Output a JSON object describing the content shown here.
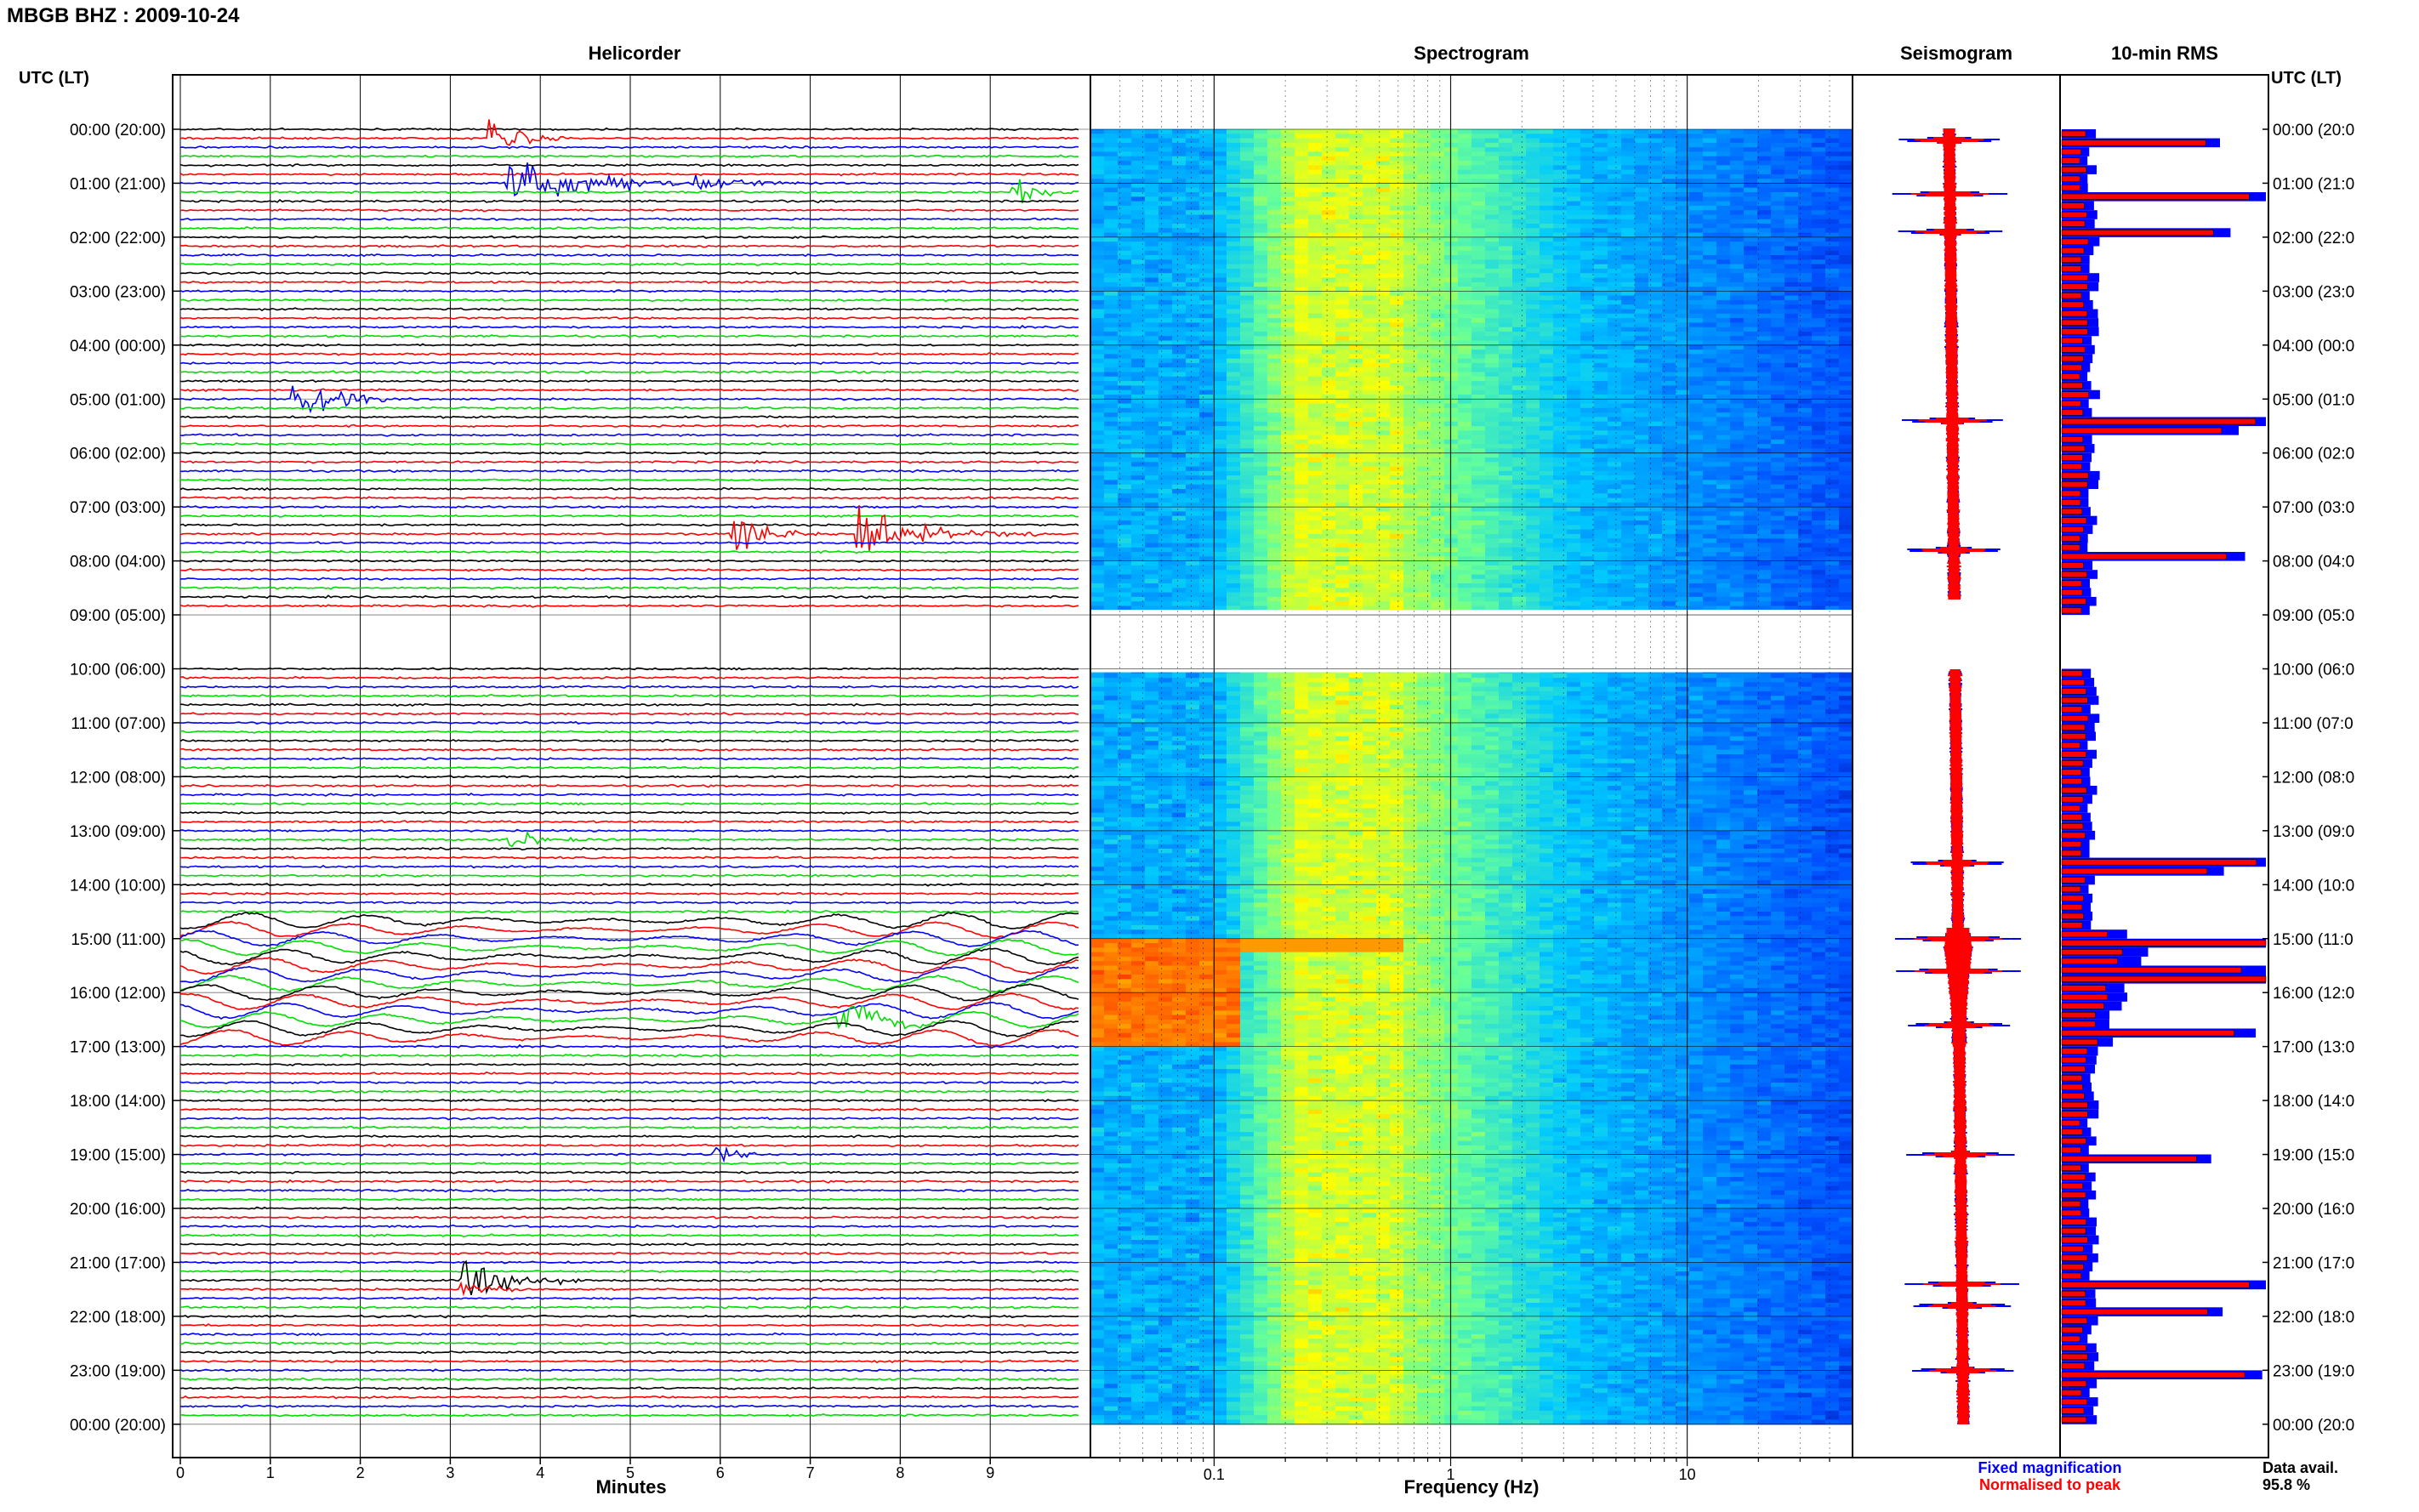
{
  "header": {
    "title": "MBGB BHZ : 2009-10-24",
    "utc_left": "UTC (LT)",
    "utc_right": "UTC (LT)"
  },
  "panels": {
    "helicorder": "Helicorder",
    "spectrogram": "Spectrogram",
    "seismogram": "Seismogram",
    "rms": "10-min RMS"
  },
  "time_labels": [
    "00:00 (20:00)",
    "01:00 (21:00)",
    "02:00 (22:00)",
    "03:00 (23:00)",
    "04:00 (00:00)",
    "05:00 (01:00)",
    "06:00 (02:00)",
    "07:00 (03:00)",
    "08:00 (04:00)",
    "09:00 (05:00)",
    "10:00 (06:00)",
    "11:00 (07:00)",
    "12:00 (08:00)",
    "13:00 (09:00)",
    "14:00 (10:00)",
    "15:00 (11:00)",
    "16:00 (12:00)",
    "17:00 (13:00)",
    "18:00 (14:00)",
    "19:00 (15:00)",
    "20:00 (16:00)",
    "21:00 (17:00)",
    "22:00 (18:00)",
    "23:00 (19:00)",
    "00:00 (20:00)"
  ],
  "time_labels_right": [
    "00:00 (20:0",
    "01:00 (21:0",
    "02:00 (22:0",
    "03:00 (23:0",
    "04:00 (00:0",
    "05:00 (01:0",
    "06:00 (02:0",
    "07:00 (03:0",
    "08:00 (04:0",
    "09:00 (05:0",
    "10:00 (06:0",
    "11:00 (07:0",
    "12:00 (08:0",
    "13:00 (09:0",
    "14:00 (10:0",
    "15:00 (11:0",
    "16:00 (12:0",
    "17:00 (13:0",
    "18:00 (14:0",
    "19:00 (15:0",
    "20:00 (16:0",
    "21:00 (17:0",
    "22:00 (18:0",
    "23:00 (19:0",
    "00:00 (20:0"
  ],
  "footer": {
    "fixed_magnification": "Fixed magnification",
    "normalised_to_peak": "Normalised to peak",
    "data_avail_label": "Data avail.",
    "data_avail_value": "95.8 %"
  },
  "colors": {
    "trace_cycle": [
      "#000000",
      "#ff0000",
      "#0000ff",
      "#00dd00"
    ],
    "fixed": "#0000ff",
    "normalised": "#ff0000"
  },
  "chart_data": [
    {
      "type": "line",
      "panel": "Helicorder",
      "xlabel": "Minutes",
      "x_ticks": [
        "0",
        "1",
        "2",
        "3",
        "4",
        "5",
        "6",
        "7",
        "8",
        "9"
      ],
      "xlim": [
        0,
        10
      ],
      "rows_per_hour": 6,
      "gap_hours": [
        9
      ],
      "events": [
        {
          "hour": 0,
          "row": 1,
          "minute": 3.4,
          "amp": 1.5,
          "dur": 1.0,
          "color": "#0000ff"
        },
        {
          "hour": 1,
          "row": 0,
          "minute": 3.6,
          "amp": 1.6,
          "dur": 2.4,
          "color": "#000000"
        },
        {
          "hour": 1,
          "row": 0,
          "minute": 5.7,
          "amp": 0.6,
          "dur": 1.5,
          "color": "#00dd00"
        },
        {
          "hour": 1,
          "row": 1,
          "minute": 9.2,
          "amp": 1.4,
          "dur": 0.8,
          "color": "#00dd00"
        },
        {
          "hour": 5,
          "row": 0,
          "minute": 1.2,
          "amp": 2.0,
          "dur": 1.2,
          "color": "#000000"
        },
        {
          "hour": 7,
          "row": 3,
          "minute": 6.1,
          "amp": 1.5,
          "dur": 1.0,
          "color": "#00dd00"
        },
        {
          "hour": 7,
          "row": 3,
          "minute": 7.5,
          "amp": 1.5,
          "dur": 2.0,
          "color": "#ff0000"
        },
        {
          "hour": 13,
          "row": 1,
          "minute": 3.6,
          "amp": 0.6,
          "dur": 1.4,
          "color": "#ff0000"
        },
        {
          "hour": 16,
          "row": 3,
          "minute": 7.3,
          "amp": 1.0,
          "dur": 1.2,
          "color": "#00dd00"
        },
        {
          "hour": 19,
          "row": 0,
          "minute": 5.9,
          "amp": 0.6,
          "dur": 0.8,
          "color": "#0000ff"
        },
        {
          "hour": 21,
          "row": 2,
          "minute": 3.1,
          "amp": 1.5,
          "dur": 1.5,
          "color": "#000000"
        },
        {
          "hour": 21,
          "row": 3,
          "minute": 3.1,
          "amp": 0.8,
          "dur": 1.0,
          "color": "#0000ff"
        }
      ],
      "microseism_hours": [
        15,
        16
      ]
    },
    {
      "type": "heatmap",
      "panel": "Spectrogram",
      "xlabel": "Frequency (Hz)",
      "x_scale": "log",
      "x_ticks": [
        "0.1",
        "1",
        "10"
      ],
      "xlim": [
        0.03,
        50
      ],
      "colormap": [
        "#0000a0",
        "#0050ff",
        "#00c8ff",
        "#66ff99",
        "#ffff00",
        "#ff8000",
        "#ff0000"
      ]
    },
    {
      "type": "line",
      "panel": "Seismogram",
      "series": [
        {
          "name": "Fixed magnification",
          "color": "#0000ff"
        },
        {
          "name": "Normalised to peak",
          "color": "#ff0000"
        }
      ]
    },
    {
      "type": "bar",
      "panel": "10-min RMS",
      "series": [
        {
          "name": "Fixed magnification",
          "color": "#0000ff"
        },
        {
          "name": "Normalised to peak",
          "color": "#ff0000"
        }
      ],
      "data_avail": "95.8 %",
      "peak_hours": [
        0.2,
        1.2,
        1.9,
        5.4,
        7.8,
        13.6,
        15.0,
        15.6,
        16.6,
        19.0,
        21.4,
        21.8,
        23.0
      ]
    }
  ]
}
